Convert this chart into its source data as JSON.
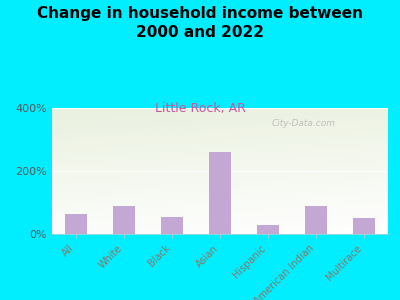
{
  "title": "Change in household income between\n2000 and 2022",
  "subtitle": "Little Rock, AR",
  "categories": [
    "All",
    "White",
    "Black",
    "Asian",
    "Hispanic",
    "American Indian",
    "Multirace"
  ],
  "values": [
    65,
    90,
    55,
    260,
    30,
    88,
    52
  ],
  "bar_color": "#c4a8d4",
  "title_fontsize": 11,
  "subtitle_fontsize": 9,
  "subtitle_color": "#cc5599",
  "tick_label_color": "#887766",
  "ytick_color": "#555555",
  "background_outer": "#00eeff",
  "ylim": [
    0,
    400
  ],
  "yticks": [
    0,
    200,
    400
  ],
  "ytick_labels": [
    "0%",
    "200%",
    "400%"
  ],
  "watermark": "City-Data.com"
}
